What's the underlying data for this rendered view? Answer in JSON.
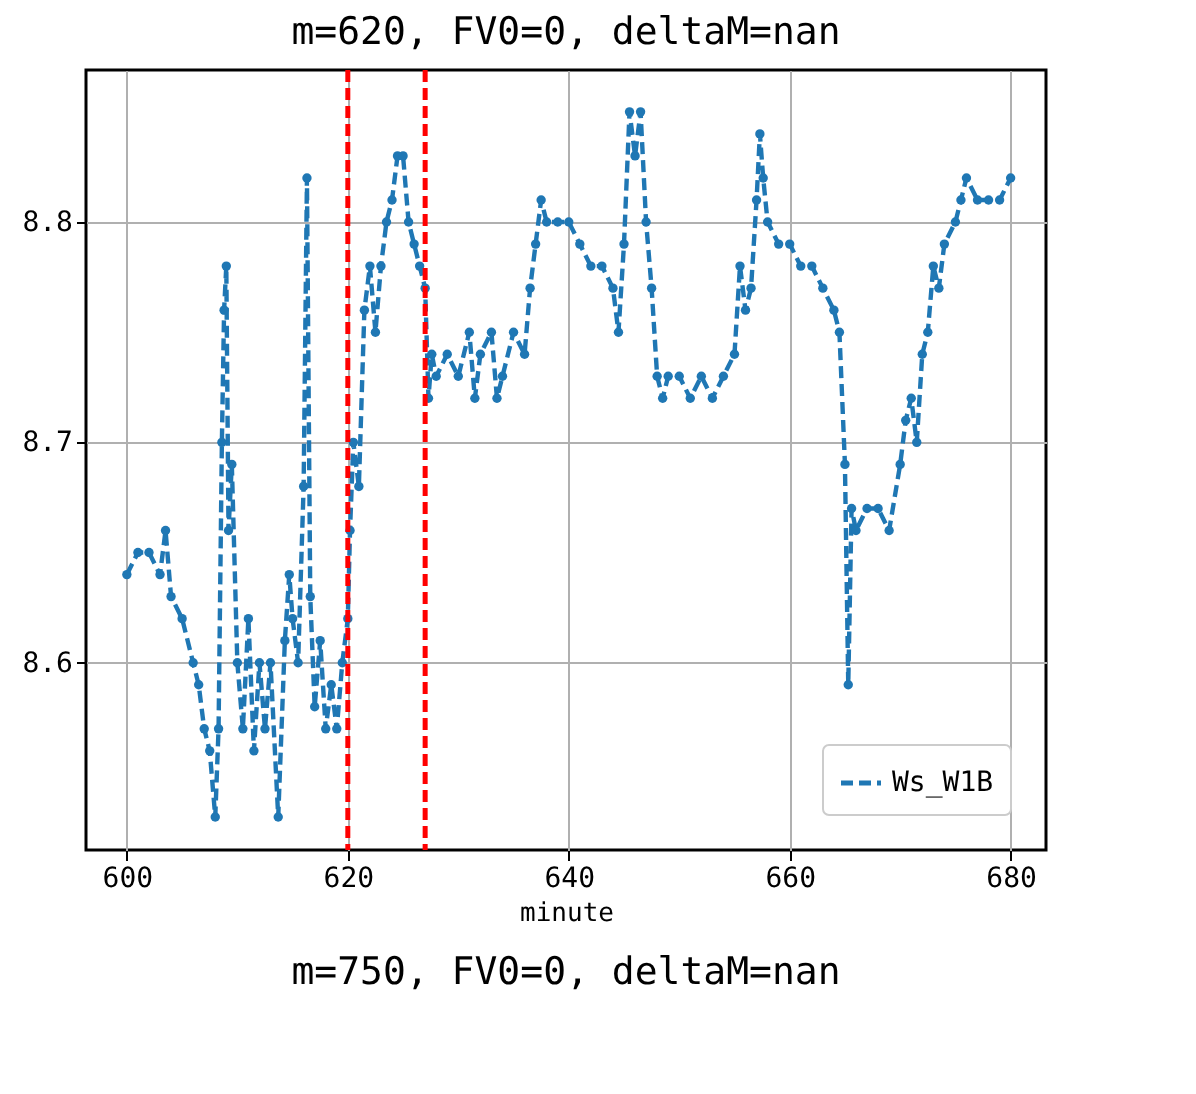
{
  "chart_data": {
    "type": "line",
    "title": "m=620, FV0=0, deltaM=nan",
    "xlabel": "minute",
    "annotations": [
      "m=750, FV0=0, deltaM=nan"
    ],
    "xlim": [
      596.3,
      683.2
    ],
    "ylim": [
      8.515,
      8.869
    ],
    "xticks": [
      600,
      620,
      640,
      660,
      680
    ],
    "yticks": [
      8.6,
      8.7,
      8.8
    ],
    "grid": true,
    "legend": "bottom right",
    "marker": "circle",
    "line_style": "dashed",
    "ref_lines": [
      {
        "axis": "x",
        "value": 620,
        "color": "#ff0000",
        "line_style": "dashed"
      },
      {
        "axis": "x",
        "value": 627,
        "color": "#ff0000",
        "line_style": "dashed"
      }
    ],
    "series": [
      {
        "name": "Ws_W1B",
        "color": "#1f77b4",
        "x": [
          600,
          601,
          602,
          603,
          603.5,
          604,
          605,
          606,
          606.5,
          607,
          607.5,
          608,
          608.3,
          608.6,
          608.8,
          609,
          609.2,
          609.5,
          610,
          610.5,
          611,
          611.5,
          612,
          612.5,
          613,
          613.7,
          614.3,
          614.7,
          615,
          615.5,
          616,
          616.3,
          616.6,
          617,
          617.5,
          618,
          618.5,
          619,
          619.5,
          620,
          620.2,
          620.5,
          621,
          621.5,
          622,
          622.5,
          623,
          623.5,
          624,
          624.5,
          625,
          625.5,
          626,
          626.5,
          627,
          627.3,
          627.6,
          628,
          629,
          630,
          631,
          631.5,
          632,
          633,
          633.5,
          634,
          635,
          636,
          636.5,
          637,
          637.5,
          638,
          639,
          640,
          641,
          642,
          643,
          644,
          644.5,
          645,
          645.5,
          646,
          646.5,
          647,
          647.5,
          648,
          648.5,
          649,
          650,
          651,
          652,
          653,
          654,
          655,
          655.5,
          656,
          656.5,
          657,
          657.3,
          657.6,
          658,
          659,
          660,
          661,
          662,
          663,
          664,
          664.5,
          665,
          665.3,
          665.6,
          666,
          667,
          668,
          669,
          670,
          670.5,
          671,
          671.5,
          672,
          672.5,
          673,
          673.5,
          674,
          675,
          675.5,
          676,
          677,
          678,
          679,
          680
        ],
        "values": [
          8.64,
          8.65,
          8.65,
          8.64,
          8.66,
          8.63,
          8.62,
          8.6,
          8.59,
          8.57,
          8.56,
          8.53,
          8.57,
          8.7,
          8.76,
          8.78,
          8.66,
          8.69,
          8.6,
          8.57,
          8.62,
          8.56,
          8.6,
          8.57,
          8.6,
          8.53,
          8.61,
          8.64,
          8.62,
          8.6,
          8.68,
          8.82,
          8.63,
          8.58,
          8.61,
          8.57,
          8.59,
          8.57,
          8.6,
          8.62,
          8.66,
          8.7,
          8.68,
          8.76,
          8.78,
          8.75,
          8.78,
          8.8,
          8.81,
          8.83,
          8.83,
          8.8,
          8.79,
          8.78,
          8.77,
          8.72,
          8.74,
          8.73,
          8.74,
          8.73,
          8.75,
          8.72,
          8.74,
          8.75,
          8.72,
          8.73,
          8.75,
          8.74,
          8.77,
          8.79,
          8.81,
          8.8,
          8.8,
          8.8,
          8.79,
          8.78,
          8.78,
          8.77,
          8.75,
          8.79,
          8.85,
          8.83,
          8.85,
          8.8,
          8.77,
          8.73,
          8.72,
          8.73,
          8.73,
          8.72,
          8.73,
          8.72,
          8.73,
          8.74,
          8.78,
          8.76,
          8.77,
          8.81,
          8.84,
          8.82,
          8.8,
          8.79,
          8.79,
          8.78,
          8.78,
          8.77,
          8.76,
          8.75,
          8.69,
          8.59,
          8.67,
          8.66,
          8.67,
          8.67,
          8.66,
          8.69,
          8.71,
          8.72,
          8.7,
          8.74,
          8.75,
          8.78,
          8.77,
          8.79,
          8.8,
          8.81,
          8.82,
          8.81,
          8.81,
          8.81,
          8.82
        ]
      }
    ]
  }
}
